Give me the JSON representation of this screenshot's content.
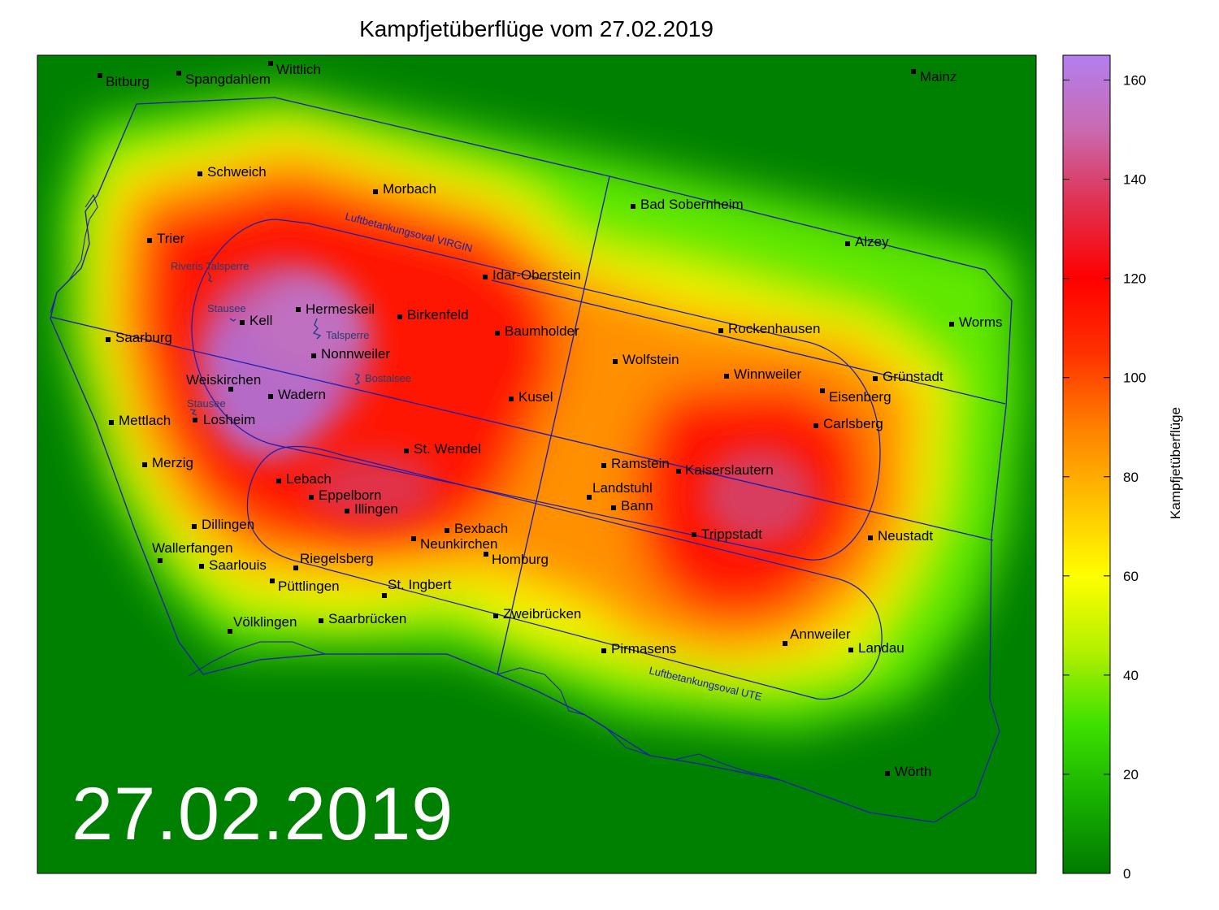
{
  "title": "Kampfjetüberflüge vom 27.02.2019",
  "date_overlay": "27.02.2019",
  "colorbar": {
    "label": "Kampfjetüberflüge",
    "min": 0,
    "max": 165,
    "ticks": [
      "0",
      "20",
      "40",
      "60",
      "80",
      "100",
      "120",
      "140",
      "160"
    ],
    "colors": [
      "#007a00",
      "#17b000",
      "#3ee000",
      "#b4f000",
      "#ffff00",
      "#ffc000",
      "#ff8000",
      "#ff3000",
      "#ff0000",
      "#e03050",
      "#c96ab0",
      "#b37ef0"
    ]
  },
  "cities": [
    {
      "name": "Bitburg"
    },
    {
      "name": "Spangdahlem"
    },
    {
      "name": "Wittlich"
    },
    {
      "name": "Mainz"
    },
    {
      "name": "Schweich"
    },
    {
      "name": "Morbach"
    },
    {
      "name": "Bad Sobernheim"
    },
    {
      "name": "Trier"
    },
    {
      "name": "Alzey"
    },
    {
      "name": "Idar-Oberstein"
    },
    {
      "name": "Hermeskeil"
    },
    {
      "name": "Kell"
    },
    {
      "name": "Birkenfeld"
    },
    {
      "name": "Baumholder"
    },
    {
      "name": "Rockenhausen"
    },
    {
      "name": "Worms"
    },
    {
      "name": "Saarburg"
    },
    {
      "name": "Nonnweiler"
    },
    {
      "name": "Wolfstein"
    },
    {
      "name": "Weiskirchen"
    },
    {
      "name": "Winnweiler"
    },
    {
      "name": "Grünstadt"
    },
    {
      "name": "Wadern"
    },
    {
      "name": "Kusel"
    },
    {
      "name": "Eisenberg"
    },
    {
      "name": "Mettlach"
    },
    {
      "name": "Losheim"
    },
    {
      "name": "Carlsberg"
    },
    {
      "name": "St. Wendel"
    },
    {
      "name": "Merzig"
    },
    {
      "name": "Ramstein"
    },
    {
      "name": "Kaiserslautern"
    },
    {
      "name": "Lebach"
    },
    {
      "name": "Landstuhl"
    },
    {
      "name": "Eppelborn"
    },
    {
      "name": "Bann"
    },
    {
      "name": "Illingen"
    },
    {
      "name": "Dillingen"
    },
    {
      "name": "Bexbach"
    },
    {
      "name": "Trippstadt"
    },
    {
      "name": "Neustadt"
    },
    {
      "name": "Wallerfangen"
    },
    {
      "name": "Neunkirchen"
    },
    {
      "name": "Homburg"
    },
    {
      "name": "Riegelsberg"
    },
    {
      "name": "Saarlouis"
    },
    {
      "name": "Püttlingen"
    },
    {
      "name": "St. Ingbert"
    },
    {
      "name": "Zweibrücken"
    },
    {
      "name": "Völklingen"
    },
    {
      "name": "Saarbrücken"
    },
    {
      "name": "Annweiler"
    },
    {
      "name": "Landau"
    },
    {
      "name": "Pirmasens"
    },
    {
      "name": "Wörth"
    }
  ],
  "water_bodies": [
    {
      "name": "Riveris Talsperre"
    },
    {
      "name": "Stausee"
    },
    {
      "name": "Talsperre"
    },
    {
      "name": "Bostalsee"
    },
    {
      "name": "Stausee"
    }
  ],
  "refueling_routes": [
    {
      "name": "Luftbetankungsoval VIRGIN"
    },
    {
      "name": "Luftbetankungsoval UTE"
    }
  ]
}
